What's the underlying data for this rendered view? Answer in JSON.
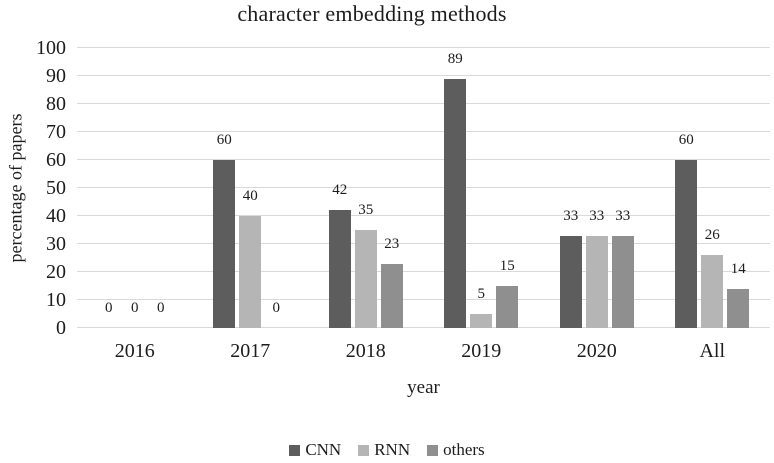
{
  "title": "character embedding methods",
  "chart_data": {
    "type": "bar",
    "title": "character embedding methods",
    "xlabel": "year",
    "ylabel": "percentage of papers",
    "categories": [
      "2016",
      "2017",
      "2018",
      "2019",
      "2020",
      "All"
    ],
    "series": [
      {
        "name": "CNN",
        "color": "#5d5d5d",
        "values": [
          0,
          60,
          42,
          89,
          33,
          60
        ]
      },
      {
        "name": "RNN",
        "color": "#b5b5b5",
        "values": [
          0,
          40,
          35,
          5,
          33,
          26
        ]
      },
      {
        "name": "others",
        "color": "#8f8f8f",
        "values": [
          0,
          0,
          23,
          15,
          33,
          14
        ]
      }
    ],
    "ylim": [
      0,
      100
    ],
    "yticks": [
      0,
      10,
      20,
      30,
      40,
      50,
      60,
      70,
      80,
      90,
      100
    ],
    "grid": true,
    "gridline_color": "#d9d9d9",
    "data_labels": true,
    "legend_position": "bottom"
  }
}
